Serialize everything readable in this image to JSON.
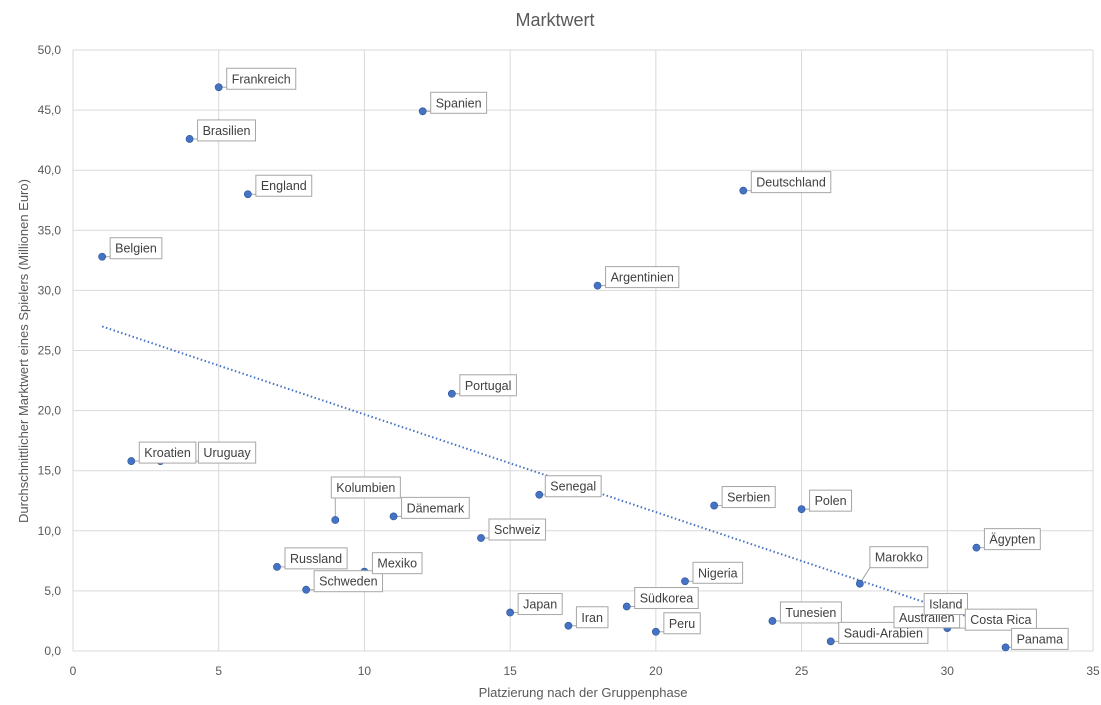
{
  "chart_data": {
    "type": "scatter",
    "title": "Marktwert",
    "xlabel": "Platzierung nach der Gruppenphase",
    "ylabel": "Durchschnittlicher Marktwert eines Spielers (Millionen Euro)",
    "xlim": [
      0,
      35
    ],
    "ylim": [
      0,
      50
    ],
    "x_ticks": [
      "0",
      "5",
      "10",
      "15",
      "20",
      "25",
      "30",
      "35"
    ],
    "y_ticks": [
      "0,0",
      "5,0",
      "10,0",
      "15,0",
      "20,0",
      "25,0",
      "30,0",
      "35,0",
      "40,0",
      "45,0",
      "50,0"
    ],
    "grid": true,
    "marker_color": "#4472c4",
    "trendline": {
      "type": "linear",
      "x": [
        1,
        32
      ],
      "y": [
        27.0,
        1.8
      ],
      "style": "dotted",
      "color": "#4472c4"
    },
    "points": [
      {
        "label": "Belgien",
        "x": 1,
        "y": 32.8
      },
      {
        "label": "Kroatien",
        "x": 2,
        "y": 15.8
      },
      {
        "label": "Uruguay",
        "x": 3,
        "y": 15.8
      },
      {
        "label": "Brasilien",
        "x": 4,
        "y": 42.6
      },
      {
        "label": "Frankreich",
        "x": 5,
        "y": 46.9
      },
      {
        "label": "England",
        "x": 6,
        "y": 38.0
      },
      {
        "label": "Russland",
        "x": 7,
        "y": 7.0
      },
      {
        "label": "Schweden",
        "x": 8,
        "y": 5.1
      },
      {
        "label": "Kolumbien",
        "x": 9,
        "y": 10.9
      },
      {
        "label": "Mexiko",
        "x": 10,
        "y": 6.6
      },
      {
        "label": "Dänemark",
        "x": 11,
        "y": 11.2
      },
      {
        "label": "Spanien",
        "x": 12,
        "y": 44.9
      },
      {
        "label": "Portugal",
        "x": 13,
        "y": 21.4
      },
      {
        "label": "Schweiz",
        "x": 14,
        "y": 9.4
      },
      {
        "label": "Japan",
        "x": 15,
        "y": 3.2
      },
      {
        "label": "Senegal",
        "x": 16,
        "y": 13.0
      },
      {
        "label": "Iran",
        "x": 17,
        "y": 2.1
      },
      {
        "label": "Argentinien",
        "x": 18,
        "y": 30.4
      },
      {
        "label": "Südkorea",
        "x": 19,
        "y": 3.7
      },
      {
        "label": "Peru",
        "x": 20,
        "y": 1.6
      },
      {
        "label": "Nigeria",
        "x": 21,
        "y": 5.8
      },
      {
        "label": "Serbien",
        "x": 22,
        "y": 12.1
      },
      {
        "label": "Deutschland",
        "x": 23,
        "y": 38.3
      },
      {
        "label": "Tunesien",
        "x": 24,
        "y": 2.5
      },
      {
        "label": "Polen",
        "x": 25,
        "y": 11.8
      },
      {
        "label": "Saudi-Arabien",
        "x": 26,
        "y": 0.8
      },
      {
        "label": "Marokko",
        "x": 27,
        "y": 5.6
      },
      {
        "label": "Australien",
        "x": 28,
        "y": 2.1
      },
      {
        "label": "Island",
        "x": 29,
        "y": 3.2
      },
      {
        "label": "Costa Rica",
        "x": 30,
        "y": 1.9
      },
      {
        "label": "Ägypten",
        "x": 31,
        "y": 8.6
      },
      {
        "label": "Panama",
        "x": 32,
        "y": 0.3
      }
    ]
  }
}
